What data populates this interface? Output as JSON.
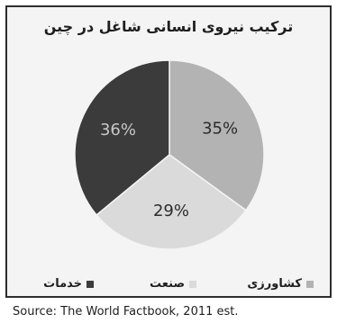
{
  "chart_data": {
    "type": "pie",
    "title": "ترکیب نیروی انسانی شاغل در چین",
    "slices": [
      {
        "label": "کشاورزی",
        "value": 35,
        "value_label": "35%",
        "color": "#b3b3b3",
        "label_color": "#2c2c2c"
      },
      {
        "label": "صنعت",
        "value": 29,
        "value_label": "29%",
        "color": "#dadada",
        "label_color": "#2c2c2c"
      },
      {
        "label": "خدمات",
        "value": 36,
        "value_label": "36%",
        "color": "#3b3b3b",
        "label_color": "#c8c8c8"
      }
    ],
    "legend": {
      "placement": "bottom",
      "items": [
        {
          "label": "کشاورزی",
          "color": "#b3b3b3"
        },
        {
          "label": "صنعت",
          "color": "#dadada"
        },
        {
          "label": "خدمات",
          "color": "#3b3b3b"
        }
      ]
    },
    "source": "Source: The World Factbook, 2011 est."
  }
}
